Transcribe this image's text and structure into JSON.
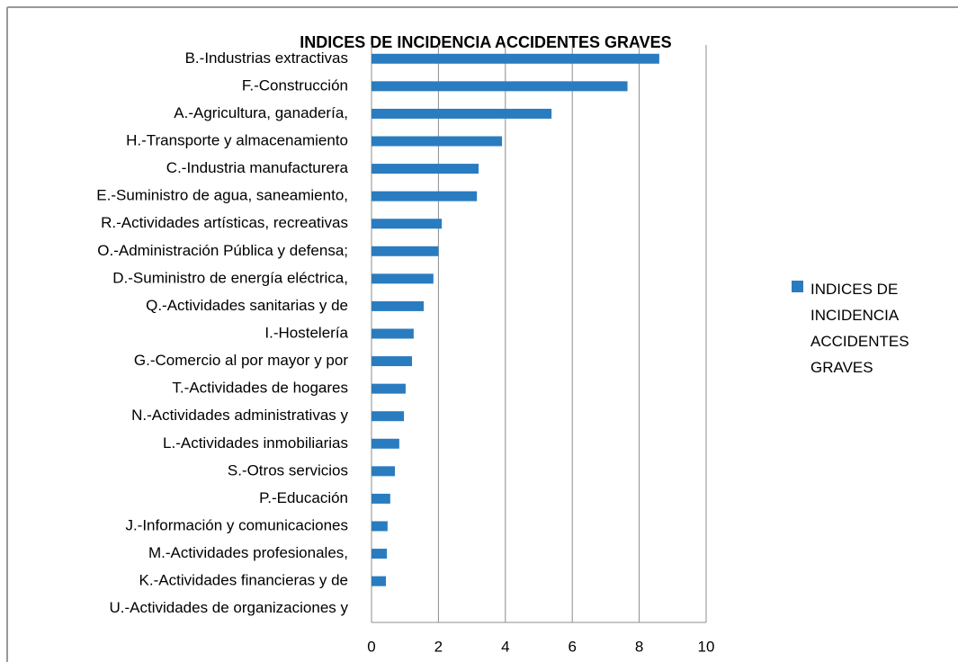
{
  "chart_data": {
    "type": "bar",
    "orientation": "horizontal",
    "title": "INDICES DE INCIDENCIA ACCIDENTES GRAVES",
    "categories": [
      "B.-Industrias extractivas",
      "F.-Construcción",
      "A.-Agricultura, ganadería,",
      "H.-Transporte y almacenamiento",
      "C.-Industria manufacturera",
      "E.-Suministro de agua, saneamiento,",
      "R.-Actividades artísticas, recreativas",
      "O.-Administración Pública y defensa;",
      "D.-Suministro de energía eléctrica,",
      "Q.-Actividades sanitarias y de",
      "I.-Hostelería",
      "G.-Comercio al por mayor y por",
      "T.-Actividades de hogares",
      "N.-Actividades administrativas y",
      "L.-Actividades inmobiliarias",
      "S.-Otros servicios",
      "P.-Educación",
      "J.-Información y comunicaciones",
      "M.-Actividades profesionales,",
      "K.-Actividades financieras y de",
      "U.-Actividades de organizaciones y"
    ],
    "series": [
      {
        "name": "INDICES DE INCIDENCIA ACCIDENTES GRAVES",
        "color": "#2a7cc0",
        "values": [
          8.6,
          7.65,
          5.38,
          3.9,
          3.2,
          3.15,
          2.1,
          2.0,
          1.85,
          1.56,
          1.26,
          1.21,
          1.02,
          0.97,
          0.83,
          0.7,
          0.56,
          0.48,
          0.46,
          0.43,
          0
        ]
      }
    ],
    "xlim": [
      0,
      10
    ],
    "xticks": [
      0,
      2,
      4,
      6,
      8,
      10
    ],
    "grid": true,
    "legend": "right"
  }
}
